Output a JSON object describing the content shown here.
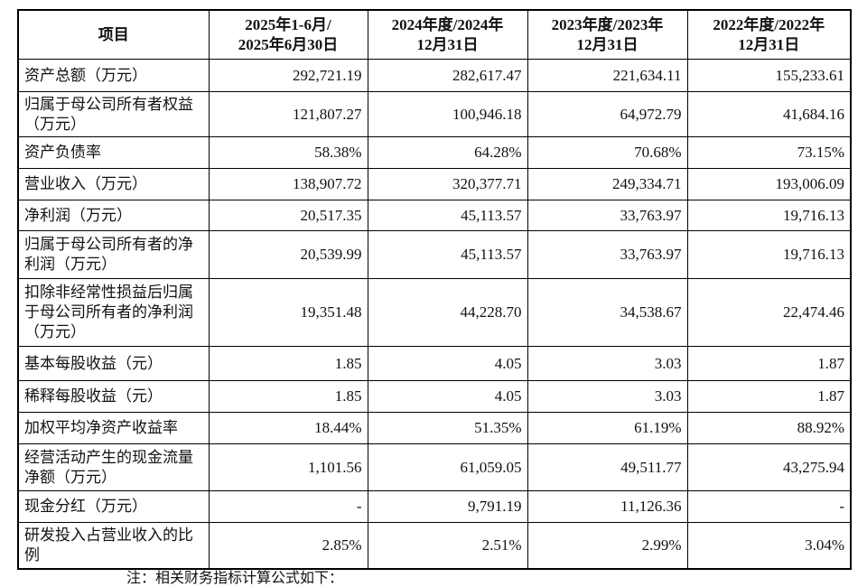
{
  "header": [
    "项目",
    "2025年1-6月/\n2025年6月30日",
    "2024年度/2024年\n12月31日",
    "2023年度/2023年\n12月31日",
    "2022年度/2022年\n12月31日"
  ],
  "rows": [
    {
      "label": "资产总额（万元）",
      "values": [
        "292,721.19",
        "282,617.47",
        "221,634.11",
        "155,233.61"
      ]
    },
    {
      "label": "归属于母公司所有者权益（万元）",
      "values": [
        "121,807.27",
        "100,946.18",
        "64,972.79",
        "41,684.16"
      ]
    },
    {
      "label": "资产负债率",
      "values": [
        "58.38%",
        "64.28%",
        "70.68%",
        "73.15%"
      ]
    },
    {
      "label": "营业收入（万元）",
      "values": [
        "138,907.72",
        "320,377.71",
        "249,334.71",
        "193,006.09"
      ]
    },
    {
      "label": "净利润（万元）",
      "values": [
        "20,517.35",
        "45,113.57",
        "33,763.97",
        "19,716.13"
      ]
    },
    {
      "label": "归属于母公司所有者的净利润（万元）",
      "values": [
        "20,539.99",
        "45,113.57",
        "33,763.97",
        "19,716.13"
      ]
    },
    {
      "label": "扣除非经常性损益后归属于母公司所有者的净利润（万元）",
      "values": [
        "19,351.48",
        "44,228.70",
        "34,538.67",
        "22,474.46"
      ]
    },
    {
      "label": "基本每股收益（元）",
      "values": [
        "1.85",
        "4.05",
        "3.03",
        "1.87"
      ]
    },
    {
      "label": "稀释每股收益（元）",
      "values": [
        "1.85",
        "4.05",
        "3.03",
        "1.87"
      ]
    },
    {
      "label": "加权平均净资产收益率",
      "values": [
        "18.44%",
        "51.35%",
        "61.19%",
        "88.92%"
      ]
    },
    {
      "label": "经营活动产生的现金流量净额（万元）",
      "values": [
        "1,101.56",
        "61,059.05",
        "49,511.77",
        "43,275.94"
      ]
    },
    {
      "label": "现金分红（万元）",
      "values": [
        "-",
        "9,791.19",
        "11,126.36",
        "-"
      ]
    },
    {
      "label": "研发投入占营业收入的比例",
      "values": [
        "2.85%",
        "2.51%",
        "2.99%",
        "3.04%"
      ]
    }
  ],
  "note": "注：相关财务指标计算公式如下："
}
